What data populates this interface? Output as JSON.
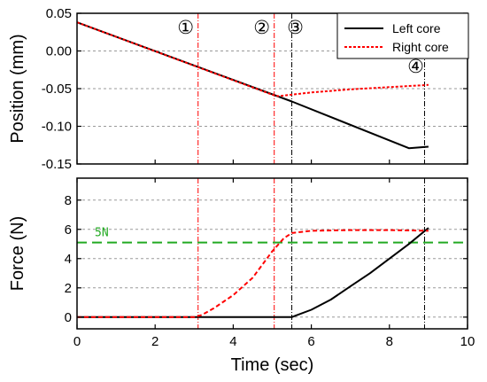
{
  "chart_data": [
    {
      "type": "line",
      "ylabel": "Position (mm)",
      "xlim": [
        0,
        10
      ],
      "ylim": [
        -0.15,
        0.05
      ],
      "yticks": [
        "0.05",
        "0.00",
        "-0.05",
        "-0.10",
        "-0.15"
      ],
      "ytick_values": [
        0.05,
        0.0,
        -0.05,
        -0.1,
        -0.15
      ],
      "grid": "horizontal dashed",
      "legend": "top-right",
      "series": [
        {
          "name": "Left core",
          "color": "#000000",
          "style": "solid",
          "x": [
            0,
            5.5,
            8.5,
            9.0
          ],
          "y": [
            0.038,
            -0.067,
            -0.129,
            -0.127
          ]
        },
        {
          "name": "Right core",
          "color": "#ff0000",
          "style": "dotted",
          "x": [
            0,
            5.0,
            5.15,
            6.0,
            7.0,
            8.0,
            9.0
          ],
          "y": [
            0.038,
            -0.058,
            -0.06,
            -0.055,
            -0.051,
            -0.048,
            -0.045
          ]
        }
      ],
      "markers": [
        {
          "label": "①",
          "x": 3.1,
          "color": "#ff0000",
          "style": "dash-dot"
        },
        {
          "label": "②",
          "x": 5.05,
          "color": "#ff0000",
          "style": "dash-dot"
        },
        {
          "label": "③",
          "x": 5.5,
          "color": "#000000",
          "style": "dash-dot"
        },
        {
          "label": "④",
          "x": 8.9,
          "color": "#000000",
          "style": "dash-dot"
        }
      ]
    },
    {
      "type": "line",
      "xlabel": "Time (sec)",
      "ylabel": "Force (N)",
      "xlim": [
        0,
        10
      ],
      "ylim": [
        -0.8,
        9.5
      ],
      "xticks": [
        "0",
        "2",
        "4",
        "6",
        "8",
        "10"
      ],
      "xtick_values": [
        0,
        2,
        4,
        6,
        8,
        10
      ],
      "yticks": [
        "0",
        "2",
        "4",
        "6",
        "8"
      ],
      "ytick_values": [
        0,
        2,
        4,
        6,
        8
      ],
      "grid": "horizontal dashed",
      "series": [
        {
          "name": "Left core",
          "color": "#000000",
          "style": "solid",
          "x": [
            0,
            5.5,
            5.6,
            6.0,
            6.5,
            7.0,
            7.5,
            8.0,
            8.5,
            9.0
          ],
          "y": [
            0,
            0,
            0.1,
            0.5,
            1.2,
            2.1,
            3.0,
            4.0,
            5.0,
            6.1
          ]
        },
        {
          "name": "Right core",
          "color": "#ff0000",
          "style": "dashed",
          "x": [
            0,
            3.0,
            3.2,
            3.5,
            4.0,
            4.5,
            5.0,
            5.3,
            5.5,
            6.0,
            7.0,
            8.0,
            9.0
          ],
          "y": [
            0,
            0,
            0.15,
            0.6,
            1.5,
            2.7,
            4.5,
            5.4,
            5.75,
            5.9,
            5.95,
            5.95,
            5.9
          ]
        }
      ],
      "reference_line": {
        "label": "5N",
        "y": 5.1,
        "color": "#22aa22"
      },
      "markers": [
        {
          "x": 3.1,
          "color": "#ff0000"
        },
        {
          "x": 5.05,
          "color": "#ff0000"
        },
        {
          "x": 5.5,
          "color": "#000000"
        },
        {
          "x": 8.9,
          "color": "#000000"
        }
      ]
    }
  ]
}
